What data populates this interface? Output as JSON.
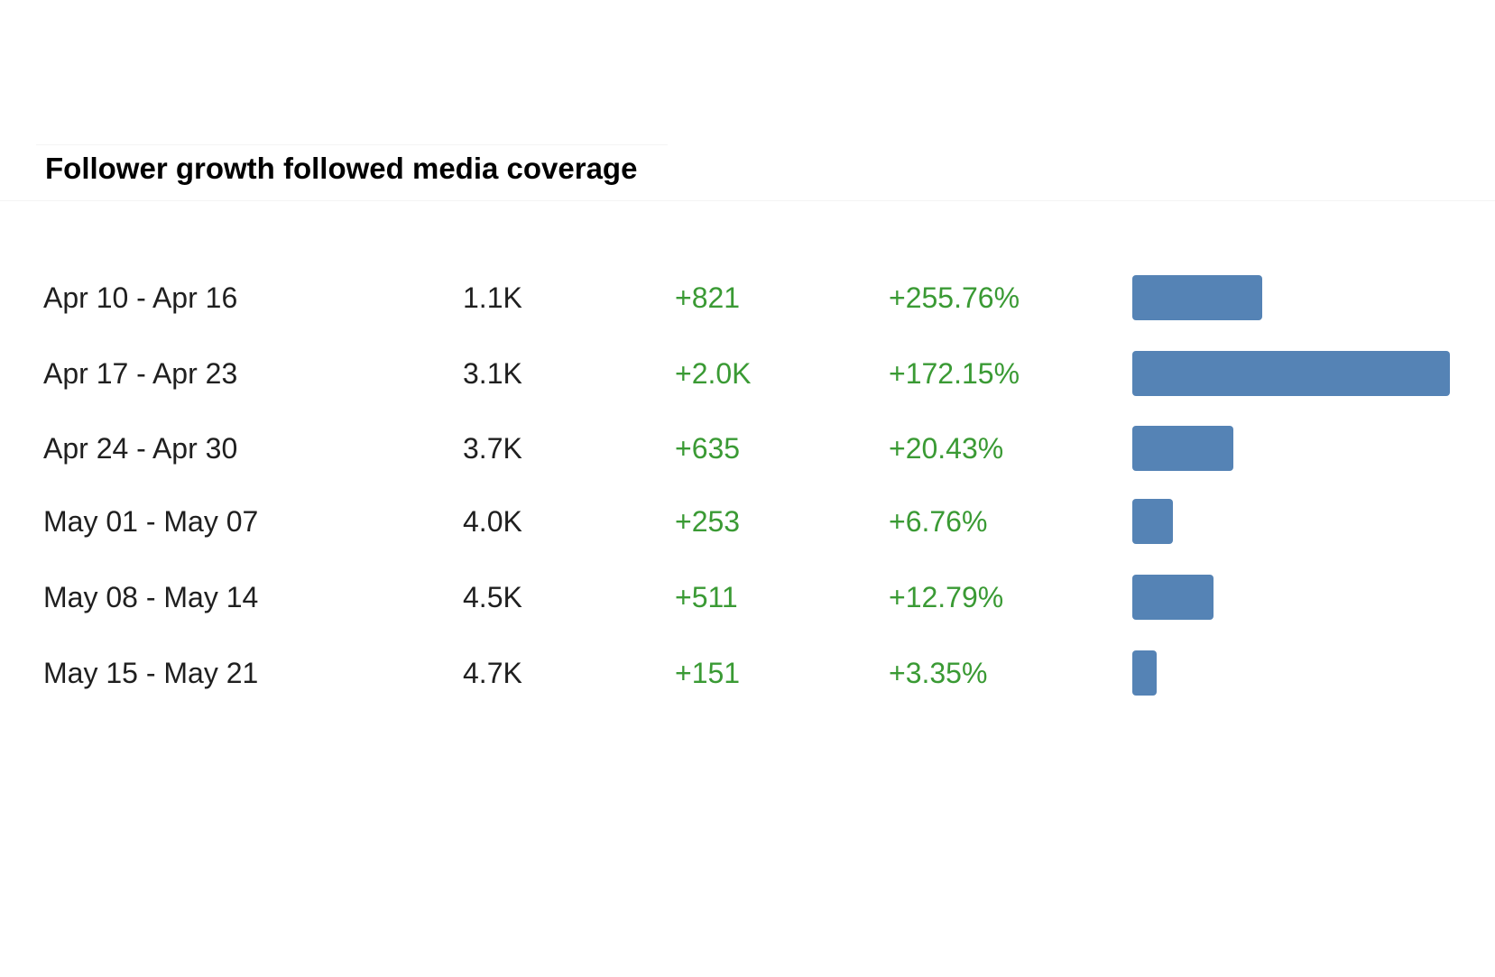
{
  "title": "Follower growth followed media coverage",
  "colors": {
    "positive": "#3a9a34",
    "bar": "#5583b5",
    "text": "#1f1f1f"
  },
  "rows": [
    {
      "period": "Apr 10 - Apr 16",
      "total": "1.1K",
      "change": "+821",
      "pct": "+255.76%"
    },
    {
      "period": "Apr 17 - Apr 23",
      "total": "3.1K",
      "change": "+2.0K",
      "pct": "+172.15%"
    },
    {
      "period": "Apr 24 - Apr 30",
      "total": "3.7K",
      "change": "+635",
      "pct": "+20.43%"
    },
    {
      "period": "May 01 - May 07",
      "total": "4.0K",
      "change": "+253",
      "pct": "+6.76%"
    },
    {
      "period": "May 08 - May 14",
      "total": "4.5K",
      "change": "+511",
      "pct": "+12.79%"
    },
    {
      "period": "May 15 - May 21",
      "total": "4.7K",
      "change": "+151",
      "pct": "+3.35%"
    }
  ],
  "chart_data": {
    "type": "bar",
    "orientation": "horizontal",
    "title": "Follower growth followed media coverage",
    "categories": [
      "Apr 10 - Apr 16",
      "Apr 17 - Apr 23",
      "Apr 24 - Apr 30",
      "May 01 - May 07",
      "May 08 - May 14",
      "May 15 - May 21"
    ],
    "values": [
      821,
      2000,
      635,
      253,
      511,
      151
    ],
    "xlim": [
      0,
      2000
    ],
    "grid": false,
    "legend": "none"
  }
}
